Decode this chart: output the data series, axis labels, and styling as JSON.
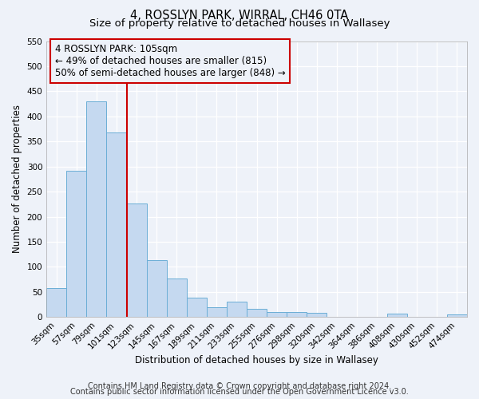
{
  "title": "4, ROSSLYN PARK, WIRRAL, CH46 0TA",
  "subtitle": "Size of property relative to detached houses in Wallasey",
  "xlabel": "Distribution of detached houses by size in Wallasey",
  "ylabel": "Number of detached properties",
  "bar_labels": [
    "35sqm",
    "57sqm",
    "79sqm",
    "101sqm",
    "123sqm",
    "145sqm",
    "167sqm",
    "189sqm",
    "211sqm",
    "233sqm",
    "255sqm",
    "276sqm",
    "298sqm",
    "320sqm",
    "342sqm",
    "364sqm",
    "386sqm",
    "408sqm",
    "430sqm",
    "452sqm",
    "474sqm"
  ],
  "bar_values": [
    57,
    292,
    430,
    368,
    226,
    113,
    76,
    38,
    20,
    30,
    17,
    10,
    10,
    9,
    0,
    0,
    0,
    6,
    0,
    0,
    5
  ],
  "bar_color": "#c5d9f0",
  "bar_edge_color": "#6baed6",
  "vline_color": "#cc0000",
  "vline_index": 3,
  "annotation_line1": "4 ROSSLYN PARK: 105sqm",
  "annotation_line2": "← 49% of detached houses are smaller (815)",
  "annotation_line3": "50% of semi-detached houses are larger (848) →",
  "annotation_box_color": "#cc0000",
  "ylim": [
    0,
    550
  ],
  "yticks": [
    0,
    50,
    100,
    150,
    200,
    250,
    300,
    350,
    400,
    450,
    500,
    550
  ],
  "footnote1": "Contains HM Land Registry data © Crown copyright and database right 2024.",
  "footnote2": "Contains public sector information licensed under the Open Government Licence v3.0.",
  "bg_color": "#eef2f9",
  "grid_color": "#ffffff",
  "title_fontsize": 10.5,
  "subtitle_fontsize": 9.5,
  "axis_label_fontsize": 8.5,
  "tick_fontsize": 7.5,
  "annotation_fontsize": 8.5,
  "footnote_fontsize": 7
}
